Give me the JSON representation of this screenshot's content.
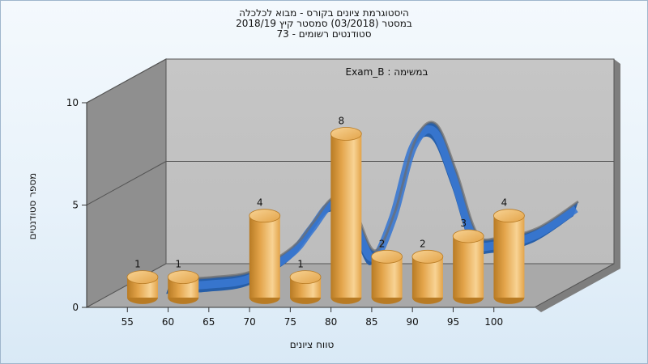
{
  "chart_data": {
    "type": "bar",
    "title_lines": [
      "היסטוגרמת ציונים בקורס - מבוא לכלכלה",
      "במסטר  (03/2018)  סמסטר קיץ 2018/19",
      "סטודנטים רשומים - 73"
    ],
    "annotation": "במשימה : Exam_B",
    "xlabel": "טווח ציונים",
    "ylabel": "מספר סטודנטים",
    "categories": [
      "55",
      "60",
      "65",
      "70",
      "75",
      "80",
      "85",
      "90",
      "95",
      "100"
    ],
    "bars": [
      {
        "x": 55,
        "value": 1
      },
      {
        "x": 60,
        "value": 1
      },
      {
        "x": 70,
        "value": 4
      },
      {
        "x": 75,
        "value": 1
      },
      {
        "x": 80,
        "value": 8
      },
      {
        "x": 85,
        "value": 2
      },
      {
        "x": 90,
        "value": 2
      },
      {
        "x": 95,
        "value": 3
      },
      {
        "x": 100,
        "value": 4
      }
    ],
    "curve": {
      "x": [
        55,
        60,
        65,
        70,
        72.5,
        75,
        77.5,
        80,
        82.5,
        85,
        87.5,
        90,
        92.5,
        95,
        100,
        105
      ],
      "y": [
        0.2,
        0.3,
        0.6,
        1.8,
        3.0,
        4.2,
        3.6,
        1.6,
        3.5,
        7.0,
        7.8,
        5.5,
        2.5,
        2.2,
        2.7,
        4.0
      ]
    },
    "ylim": [
      0,
      10
    ],
    "yticks": [
      0,
      5,
      10
    ],
    "grid": true,
    "colors": {
      "bar": "#e3a44a",
      "bar_light": "#f8d394",
      "bar_dark": "#b87b24",
      "curve_front": "#3a78d0",
      "curve_back": "#1f5aa8",
      "plot_back": "#bdbdbd",
      "plot_side": "#8f8f8f",
      "plot_floor": "#a9a9a9"
    }
  }
}
